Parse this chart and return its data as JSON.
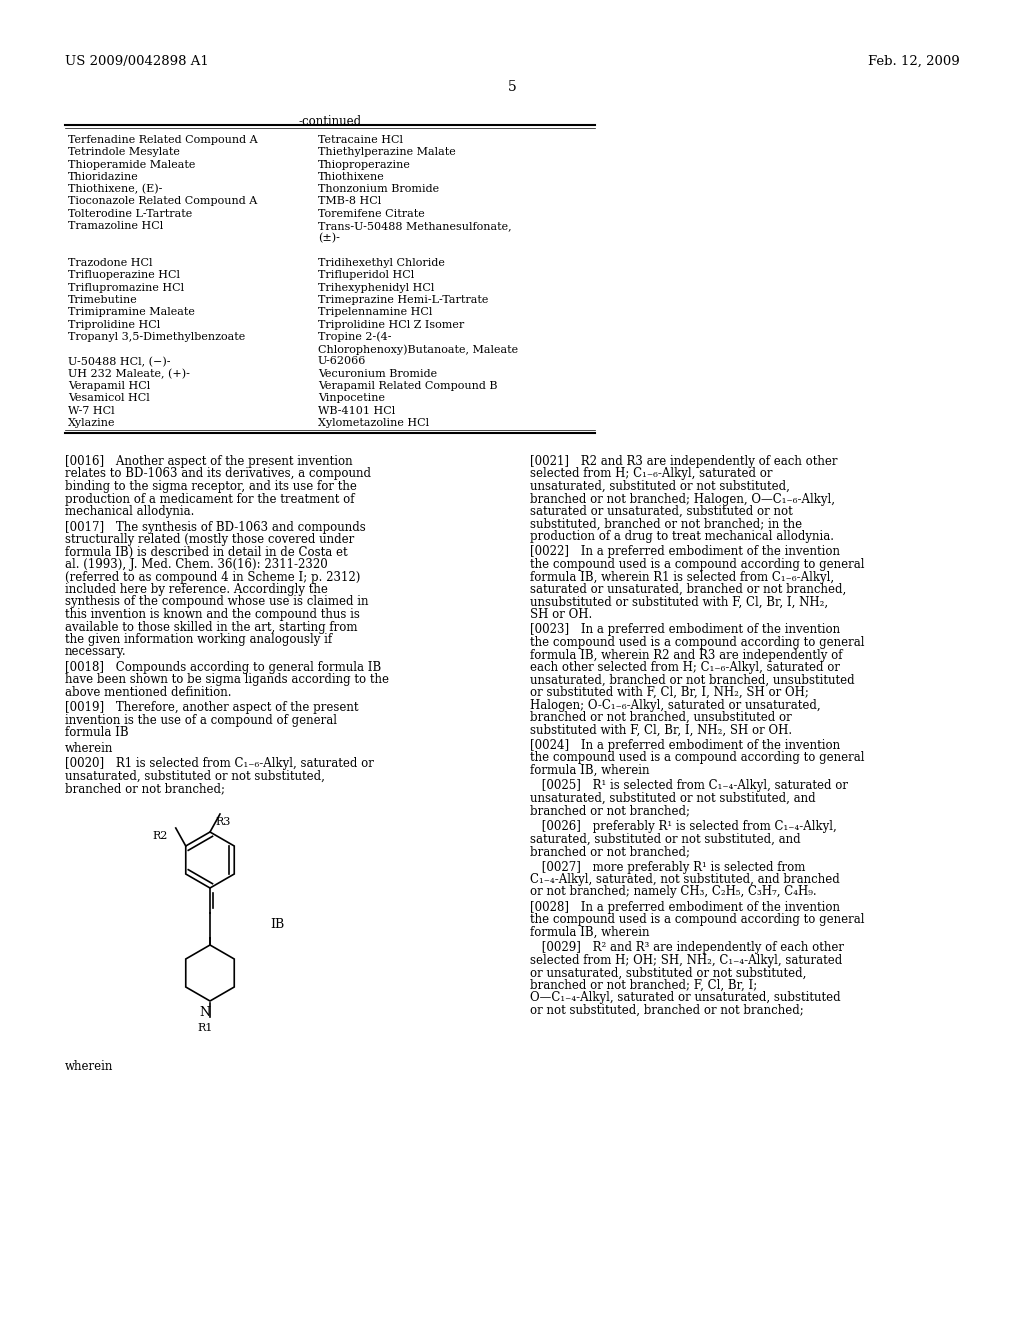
{
  "header_left": "US 2009/0042898 A1",
  "header_right": "Feb. 12, 2009",
  "page_number": "5",
  "continued_label": "-continued",
  "table_left_col": [
    "Terfenadine Related Compound A",
    "Tetrindole Mesylate",
    "Thioperamide Maleate",
    "Thioridazine",
    "Thiothixene, (E)-",
    "Tioconazole Related Compound A",
    "Tolterodine L-Tartrate",
    "Tramazoline HCl",
    "",
    "",
    "Trazodone HCl",
    "Trifluoperazine HCl",
    "Triflupromazine HCl",
    "Trimebutine",
    "Trimipramine Maleate",
    "Triprolidine HCl",
    "Tropanyl 3,5-Dimethylbenzoate",
    "",
    "U-50488 HCl, (−)-",
    "UH 232 Maleate, (+)-",
    "Verapamil HCl",
    "Vesamicol HCl",
    "W-7 HCl",
    "Xylazine"
  ],
  "table_right_col": [
    "Tetracaine HCl",
    "Thiethylperazine Malate",
    "Thioproperazine",
    "Thiothixene",
    "Thonzonium Bromide",
    "TMB-8 HCl",
    "Toremifene Citrate",
    "Trans-U-50488 Methanesulfonate,",
    "(±)-",
    "",
    "Tridihexethyl Chloride",
    "Trifluperidol HCl",
    "Trihexyphenidyl HCl",
    "Trimeprazine Hemi-L-Tartrate",
    "Tripelennamine HCl",
    "Triprolidine HCl Z Isomer",
    "Tropine 2-(4-",
    "Chlorophenoxy)Butanoate, Maleate",
    "U-62066",
    "Vecuronium Bromide",
    "Verapamil Related Compound B",
    "Vinpocetine",
    "WB-4101 HCl",
    "Xylometazoline HCl"
  ],
  "body_left": [
    "[0016] Another aspect of the present invention relates to BD-1063 and its derivatives, a compound binding to the sigma receptor, and its use for the production of a medicament for the treatment of mechanical allodynia.",
    "[0017] The synthesis of BD-1063 and compounds structurally related (mostly those covered under formula IB) is described in detail in de Costa et al. (1993), J. Med. Chem. 36(16): 2311-2320 (referred to as compound 4 in Scheme I; p. 2312) included here by reference. Accordingly the synthesis of the compound whose use is claimed in this invention is known and the compound thus is available to those skilled in the art, starting from the given information working analogously if necessary.",
    "[0018] Compounds according to general formula IB have been shown to be sigma ligands according to the above mentioned definition.",
    "[0019] Therefore, another aspect of the present invention is the use of a compound of general formula IB",
    "wherein",
    "[0020] R1 is selected from C₁₋₆-Alkyl, saturated or unsaturated, substituted or not substituted, branched or not branched;"
  ],
  "body_right": [
    "[0021] R2 and R3 are independently of each other selected from H; C₁₋₆-Alkyl, saturated or unsaturated, substituted or not substituted, branched or not branched; Halogen, O—C₁₋₆-Alkyl, saturated or unsaturated, substituted or not substituted, branched or not branched; in the production of a drug to treat mechanical allodynia.",
    "[0022] In a preferred embodiment of the invention the compound used is a compound according to general formula IB, wherein R1 is selected from C₁₋₆-Alkyl, saturated or unsaturated, branched or not branched, unsubstituted or substituted with F, Cl, Br, I, NH₂, SH or OH.",
    "[0023] In a preferred embodiment of the invention the compound used is a compound according to general formula IB, wherein R2 and R3 are independently of each other selected from H; C₁₋₆-Alkyl, saturated or unsaturated, branched or not branched, unsubstituted or substituted with F, Cl, Br, I, NH₂, SH or OH; Halogen; O-C₁₋₆-Alkyl, saturated or unsaturated, branched or not branched, unsubstituted or substituted with F, Cl, Br, I, NH₂, SH or OH.",
    "[0024] In a preferred embodiment of the invention the compound used is a compound according to general formula IB, wherein",
    " [0025] R¹ is selected from C₁₋₄-Alkyl, saturated or unsaturated, substituted or not substituted, and branched or not branched;",
    " [0026] preferably R¹ is selected from C₁₋₄-Alkyl, saturated, substituted or not substituted, and branched or not branched;",
    " [0027] more preferably R¹ is selected from C₁₋₄-Alkyl, saturated, not substituted, and branched or not branched; namely CH₃, C₂H₅, C₃H₇, C₄H₉.",
    "[0028] In a preferred embodiment of the invention the compound used is a compound according to general formula IB, wherein",
    " [0029] R² and R³ are independently of each other selected from H; OH; SH, NH₂, C₁₋₄-Alkyl, saturated or unsaturated, substituted or not substituted, branched or not branched; F, Cl, Br, I; O—C₁₋₄-Alkyl, saturated or unsaturated, substituted or not substituted, branched or not branched;"
  ],
  "formula_label": "IB",
  "bg_color": "#ffffff",
  "text_color": "#000000",
  "font_size_header": 9.5,
  "font_size_body": 8.5,
  "font_size_table": 8.0
}
